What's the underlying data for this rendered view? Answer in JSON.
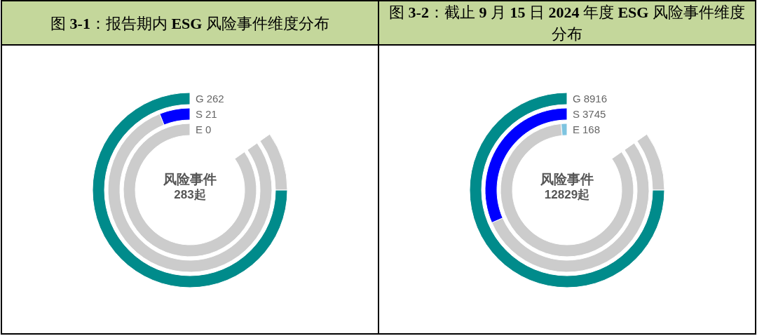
{
  "chart_data": [
    {
      "type": "other",
      "title": "图 3-1：报告期内 ESG 风险事件维度分布",
      "categories": [
        "G",
        "S",
        "E"
      ],
      "values": [
        262,
        21,
        0
      ],
      "colors": [
        "#008b8b",
        "#0000ff",
        null
      ],
      "data_labels": true,
      "annotations": [
        "风险事件",
        "283起"
      ]
    },
    {
      "type": "other",
      "title": "图 3-2：截止 9 月 15 日 2024 年度 ESG 风险事件维度分布",
      "categories": [
        "G",
        "S",
        "E"
      ],
      "values": [
        8916,
        3745,
        168
      ],
      "colors": [
        "#008b8b",
        "#0000ff",
        "#7ec4e0"
      ],
      "data_labels": true,
      "annotations": [
        "风险事件",
        "12829起"
      ]
    }
  ]
}
